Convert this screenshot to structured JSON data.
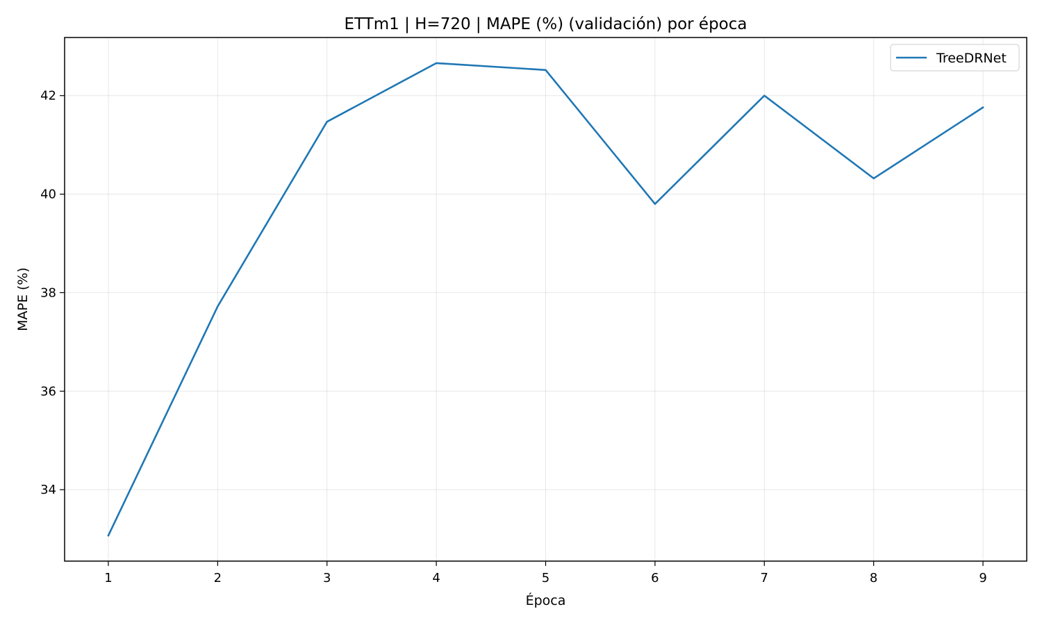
{
  "chart_data": {
    "type": "line",
    "title": "ETTm1 | H=720 | MAPE (%) (validación) por época",
    "xlabel": "Época",
    "ylabel": "MAPE (%)",
    "x": [
      1,
      2,
      3,
      4,
      5,
      6,
      7,
      8,
      9
    ],
    "series": [
      {
        "name": "TreeDRNet",
        "color": "#1f77b4",
        "values": [
          33.07,
          37.72,
          41.47,
          42.66,
          42.52,
          39.8,
          42.0,
          40.32,
          41.76
        ]
      }
    ],
    "xlim": [
      0.6,
      9.4
    ],
    "ylim": [
      32.55,
      43.18
    ],
    "xticks": [
      1,
      2,
      3,
      4,
      5,
      6,
      7,
      8,
      9
    ],
    "yticks": [
      34,
      36,
      38,
      40,
      42
    ],
    "grid": true,
    "legend_position": "top-right"
  }
}
